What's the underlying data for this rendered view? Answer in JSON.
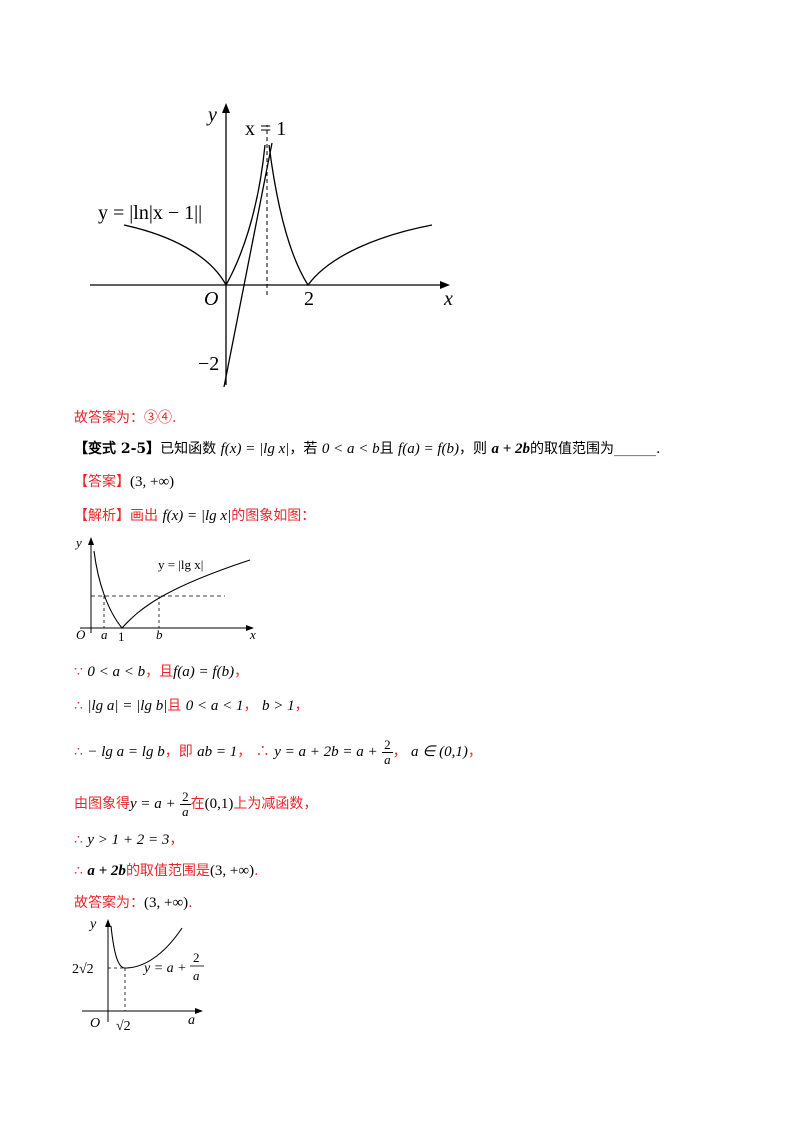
{
  "graph1": {
    "y_label": "y",
    "x_label": "x",
    "origin": "O",
    "vline_label": "x = 1",
    "curve_label": "y = |ln|x − 1||",
    "tick_2": "2",
    "tick_neg2": "−2"
  },
  "answer_prev": {
    "text": "故答案为：③④."
  },
  "problem": {
    "tag": "【变式 2-5】",
    "intro": "已知函数",
    "fx": "f(x) = |lg x|",
    "cond_pre": "，若",
    "cond": "0 < a < b",
    "cond_mid": "且",
    "eq": "f(a) = f(b)",
    "ask_pre": "，则",
    "expr": "a + 2b",
    "ask_post": "的取值范围为",
    "blank": "______",
    "end": "."
  },
  "answer": {
    "tag": "【答案】",
    "value": "(3, +∞)"
  },
  "solution": {
    "tag": "【解析】",
    "lead": "画出",
    "fx": "f(x) = |lg x|",
    "lead_post": "的图象如图："
  },
  "graph2": {
    "y_label": "y",
    "x_label": "x",
    "origin": "O",
    "curve_label": "y = |lg x|",
    "tick_a": "a",
    "tick_1": "1",
    "tick_b": "b"
  },
  "steps": {
    "s1_sym": "∵",
    "s1_a": "0 < a < b",
    "s1_b": "，且",
    "s1_c": "f(a) = f(b)",
    "s1_d": "，",
    "s2_sym": "∴",
    "s2_a": "|lg a| = |lg b|",
    "s2_b": "且",
    "s2_c": "0 < a < 1",
    "s2_d": "，",
    "s2_e": "b > 1",
    "s2_f": "，",
    "s3_sym": "∴",
    "s3_a": "− lg a = lg b",
    "s3_b": "，即",
    "s3_c": "ab = 1",
    "s3_d": "，",
    "s3_sym2": "∴",
    "s3_e": "y = a + 2b = a +",
    "s3_num": "2",
    "s3_den": "a",
    "s3_f": "，",
    "s3_g": "a ∈ (0,1)",
    "s3_h": "，",
    "s4_a": "由图象得",
    "s4_b": "y = a +",
    "s4_num": "2",
    "s4_den": "a",
    "s4_c": "在",
    "s4_d": "(0,1)",
    "s4_e": "上为减函数，",
    "s5_sym": "∴",
    "s5_a": "y > 1 + 2 = 3",
    "s5_b": "，",
    "s6_sym": "∴",
    "s6_a": "a + 2b",
    "s6_b": "的取值范围是",
    "s6_c": "(3, +∞)",
    "s6_d": "."
  },
  "final": {
    "text": "故答案为：",
    "value": "(3, +∞)",
    "end": "."
  },
  "graph3": {
    "y_label": "y",
    "x_label": "a",
    "origin": "O",
    "y_tick": "2√2",
    "x_tick": "√2",
    "curve_label_a": "y = a +",
    "curve_num": "2",
    "curve_den": "a"
  }
}
